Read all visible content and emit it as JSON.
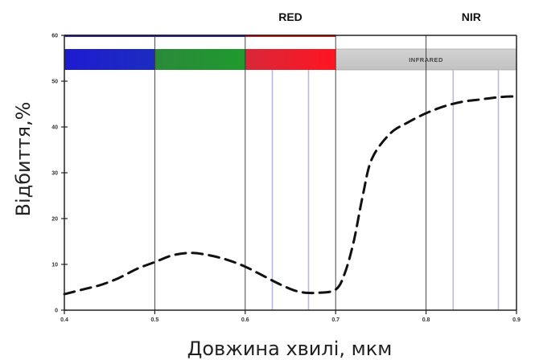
{
  "chart_data": {
    "type": "line",
    "title": "",
    "xlabel": "Довжина хвилі, мкм",
    "ylabel": "Відбиття,%",
    "xlim": [
      0.4,
      0.9
    ],
    "ylim": [
      0,
      60
    ],
    "x_ticks": [
      0.4,
      0.5,
      0.6,
      0.7,
      0.8,
      0.9
    ],
    "x_tick_labels": [
      "0.4",
      "0.5",
      "0.6",
      "0.7",
      "0.8",
      "0.9"
    ],
    "y_ticks": [
      0,
      10,
      20,
      30,
      40,
      50,
      60
    ],
    "y_tick_labels": [
      "0",
      "10",
      "20",
      "30",
      "40",
      "50",
      "60"
    ],
    "series": [
      {
        "style": "dashed",
        "color": "#111111",
        "x": [
          0.4,
          0.42,
          0.44,
          0.46,
          0.48,
          0.5,
          0.52,
          0.54,
          0.56,
          0.58,
          0.6,
          0.62,
          0.64,
          0.66,
          0.68,
          0.7,
          0.71,
          0.72,
          0.73,
          0.74,
          0.76,
          0.78,
          0.8,
          0.82,
          0.84,
          0.86,
          0.88,
          0.9
        ],
        "y": [
          3.5,
          4.5,
          5.5,
          7.0,
          9.0,
          10.5,
          12.0,
          12.5,
          12.0,
          11.0,
          9.5,
          7.5,
          5.5,
          4.0,
          3.8,
          4.5,
          8.0,
          15.0,
          25.0,
          33.0,
          38.5,
          41.0,
          43.0,
          44.5,
          45.5,
          46.0,
          46.5,
          46.7
        ]
      }
    ],
    "spectrum_bands": [
      {
        "x_start": 0.4,
        "x_end": 0.5,
        "color_from": "#1d1bd0",
        "color_to": "#1d2cc0"
      },
      {
        "x_start": 0.5,
        "x_end": 0.6,
        "color_from": "#2a8a3a",
        "color_to": "#1f9a2e"
      },
      {
        "x_start": 0.6,
        "x_end": 0.7,
        "color_from": "#d8283a",
        "color_to": "#ff1520"
      },
      {
        "x_start": 0.7,
        "x_end": 0.9,
        "color_from": "#d2d2d2",
        "color_to": "#c2c2c2"
      }
    ],
    "infrared_label": "INFRARED",
    "band_labels": [
      {
        "text": "RED",
        "x": 0.65
      },
      {
        "text": "NIR",
        "x": 0.85
      }
    ],
    "vertical_lines_dark": [
      0.5,
      0.6,
      0.7,
      0.8
    ],
    "vertical_lines_lavender": [
      0.63,
      0.67,
      0.83,
      0.88
    ]
  }
}
